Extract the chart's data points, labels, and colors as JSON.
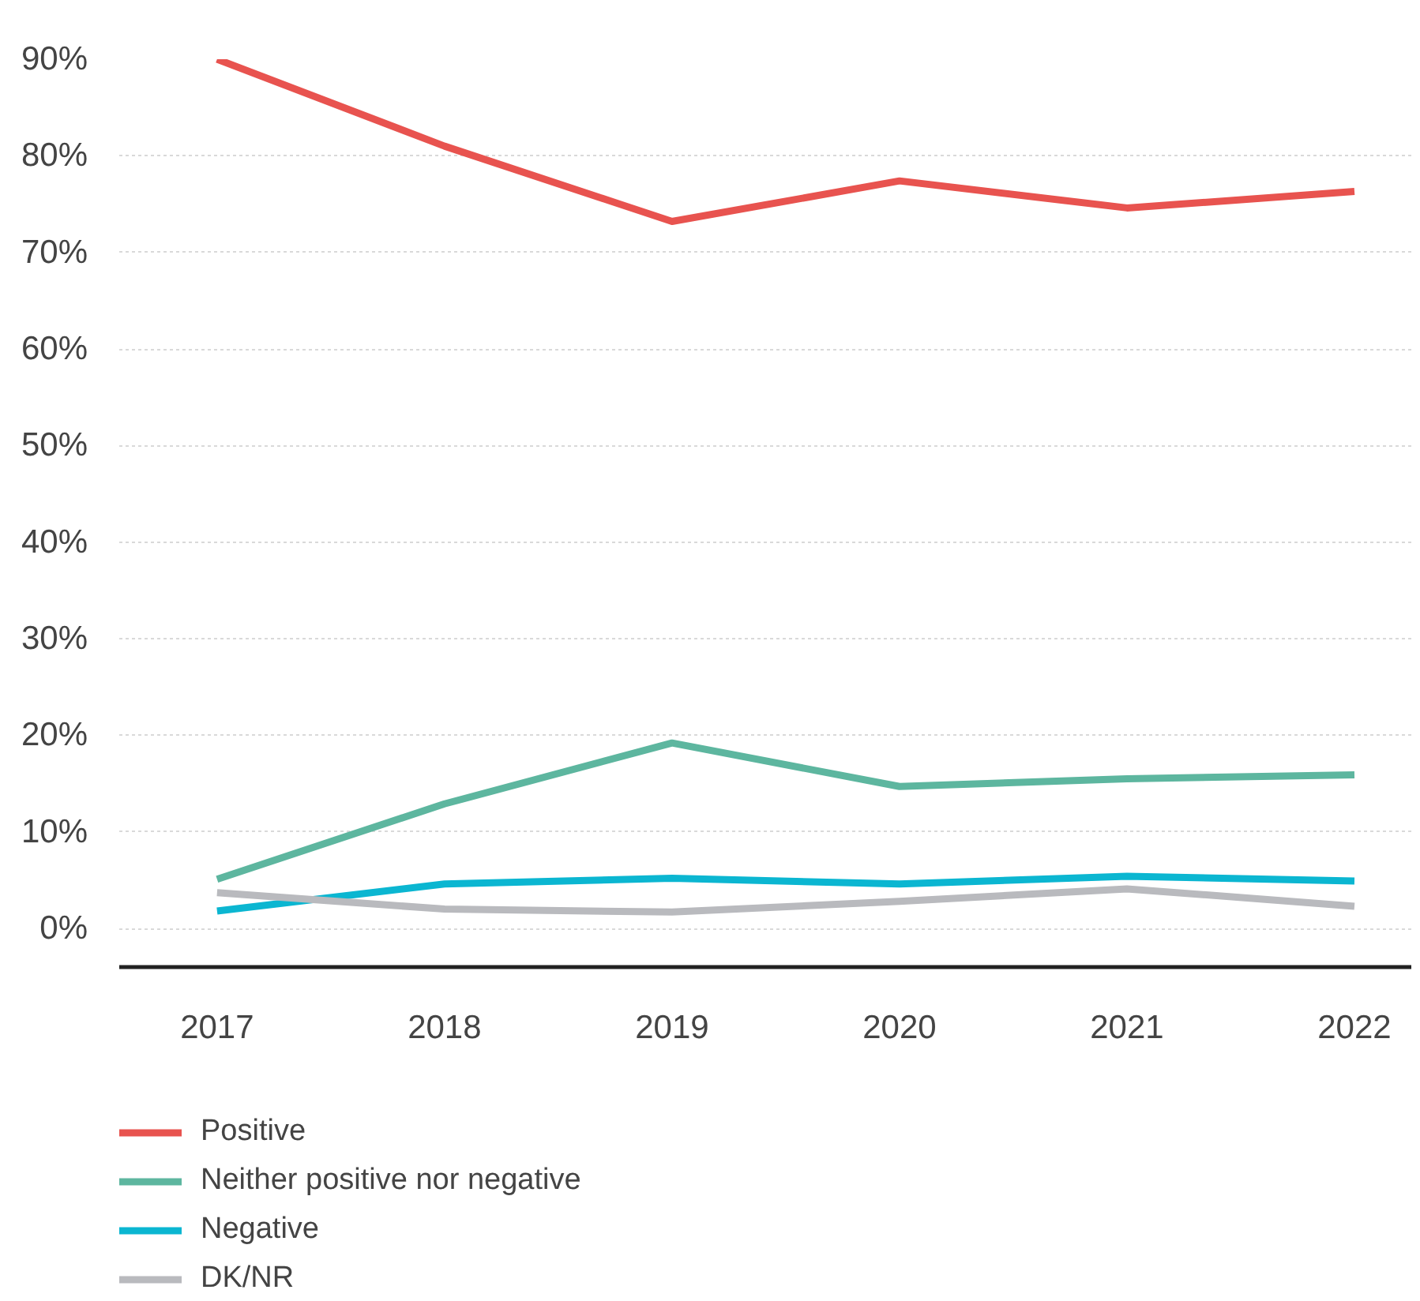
{
  "chart_data": {
    "type": "line",
    "categories": [
      "2017",
      "2018",
      "2019",
      "2020",
      "2021",
      "2022"
    ],
    "series": [
      {
        "name": "Positive",
        "color": "#e8534f",
        "values": [
          90,
          81,
          73.2,
          77.4,
          74.6,
          76.3
        ]
      },
      {
        "name": "Neither positive nor negative",
        "color": "#5db69f",
        "values": [
          5.1,
          12.9,
          19.2,
          14.7,
          15.5,
          15.9
        ]
      },
      {
        "name": "Negative",
        "color": "#0bb6d1",
        "values": [
          1.8,
          4.6,
          5.2,
          4.6,
          5.4,
          4.9
        ]
      },
      {
        "name": "DK/NR",
        "color": "#b9babe",
        "values": [
          3.7,
          2.0,
          1.7,
          2.8,
          4.1,
          2.3
        ]
      }
    ],
    "ylim": [
      -4,
      90
    ],
    "yticks": [
      {
        "value": 0,
        "label": "0%"
      },
      {
        "value": 10,
        "label": "10%"
      },
      {
        "value": 20,
        "label": "20%"
      },
      {
        "value": 30,
        "label": "30%"
      },
      {
        "value": 40,
        "label": "40%"
      },
      {
        "value": 50,
        "label": "50%"
      },
      {
        "value": 60,
        "label": "60%"
      },
      {
        "value": 70,
        "label": "70%"
      },
      {
        "value": 80,
        "label": "80%"
      },
      {
        "value": 90,
        "label": "90%"
      }
    ],
    "grid": "y",
    "legend": "bottom",
    "line_style": "solid"
  }
}
